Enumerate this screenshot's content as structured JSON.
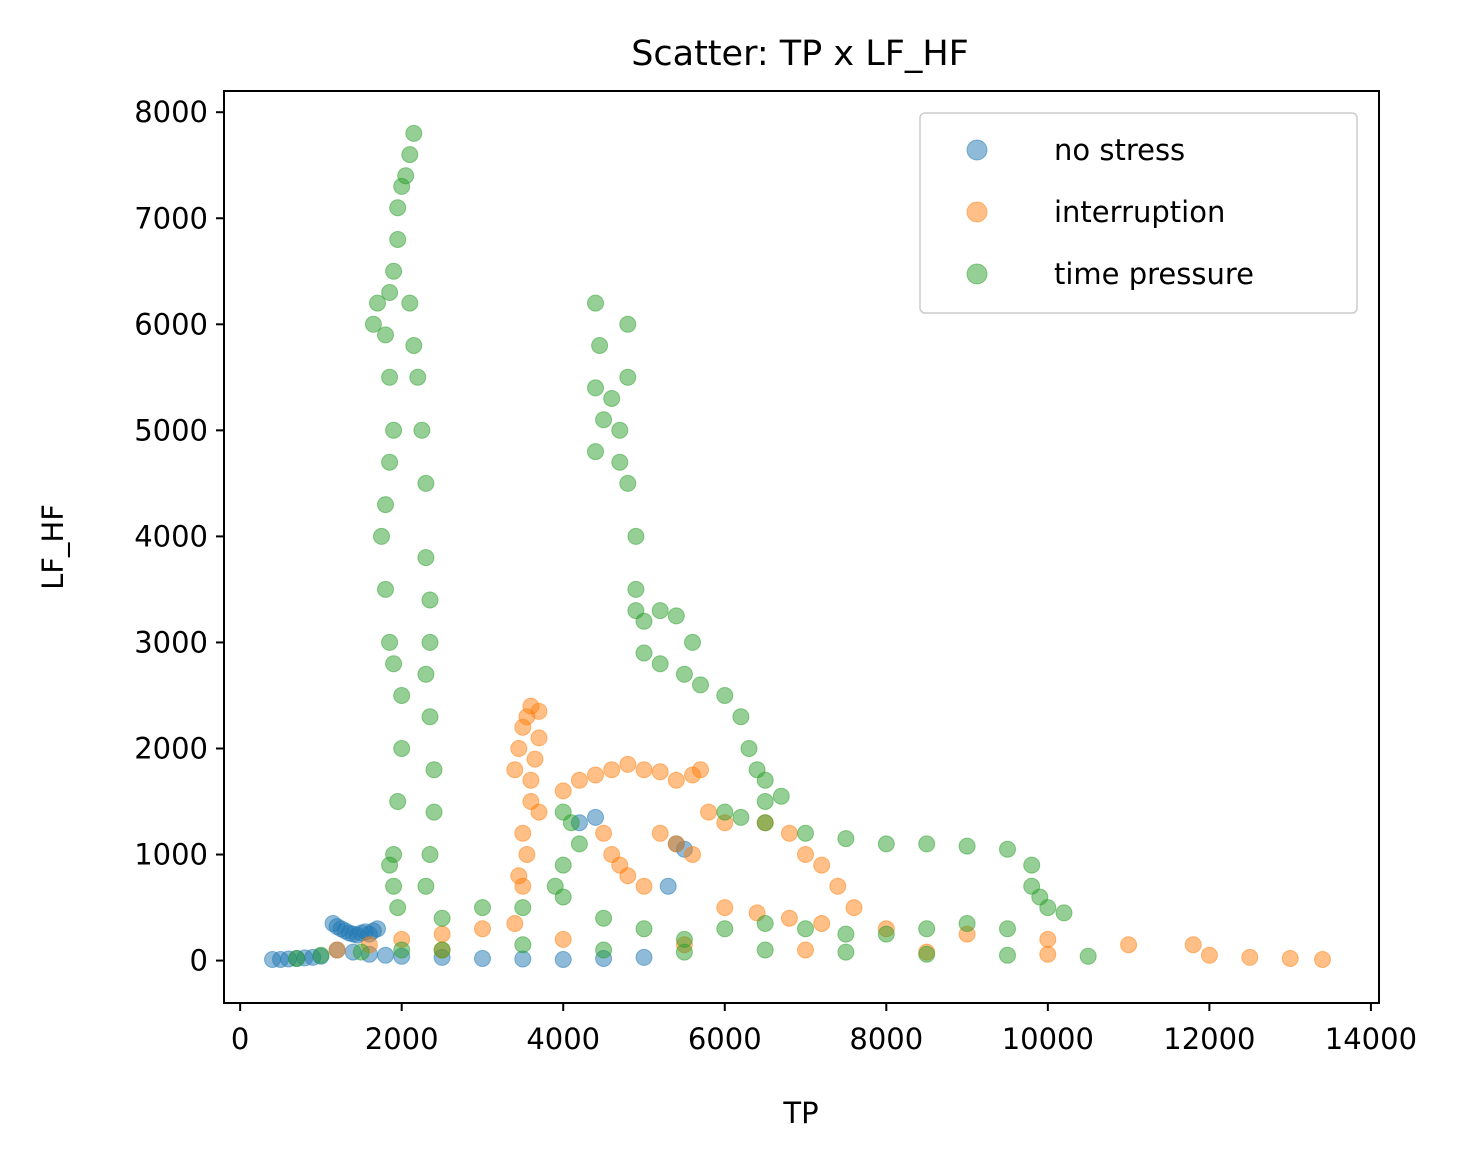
{
  "chart_data": {
    "type": "scatter",
    "title": "Scatter: TP x LF_HF",
    "xlabel": "TP",
    "ylabel": "LF_HF",
    "xlim": [
      -200,
      14100
    ],
    "ylim": [
      -400,
      8200
    ],
    "xticks": [
      0,
      2000,
      4000,
      6000,
      8000,
      10000,
      12000,
      14000
    ],
    "yticks": [
      0,
      1000,
      2000,
      3000,
      4000,
      5000,
      6000,
      7000,
      8000
    ],
    "xtick_labels": [
      "0",
      "2000",
      "4000",
      "6000",
      "8000",
      "10000",
      "12000",
      "14000"
    ],
    "ytick_labels": [
      "0",
      "1000",
      "2000",
      "3000",
      "4000",
      "5000",
      "6000",
      "7000",
      "8000"
    ],
    "grid": false,
    "legend_position": "top-right",
    "series": [
      {
        "name": "no stress",
        "color": "#1f77b4",
        "points": [
          [
            400,
            10
          ],
          [
            500,
            10
          ],
          [
            600,
            15
          ],
          [
            700,
            20
          ],
          [
            800,
            25
          ],
          [
            900,
            30
          ],
          [
            1000,
            40
          ],
          [
            1150,
            350
          ],
          [
            1200,
            320
          ],
          [
            1250,
            300
          ],
          [
            1300,
            280
          ],
          [
            1350,
            260
          ],
          [
            1400,
            250
          ],
          [
            1450,
            240
          ],
          [
            1500,
            260
          ],
          [
            1550,
            270
          ],
          [
            1600,
            250
          ],
          [
            1650,
            280
          ],
          [
            1700,
            300
          ],
          [
            1200,
            100
          ],
          [
            1400,
            80
          ],
          [
            1600,
            60
          ],
          [
            1800,
            50
          ],
          [
            2000,
            40
          ],
          [
            2500,
            30
          ],
          [
            3000,
            20
          ],
          [
            3500,
            15
          ],
          [
            4000,
            10
          ],
          [
            4500,
            20
          ],
          [
            5000,
            30
          ],
          [
            4200,
            1300
          ],
          [
            4400,
            1350
          ],
          [
            5400,
            1100
          ],
          [
            5500,
            1050
          ],
          [
            5300,
            700
          ]
        ]
      },
      {
        "name": "interruption",
        "color": "#ff7f0e",
        "points": [
          [
            1200,
            100
          ],
          [
            1600,
            150
          ],
          [
            2000,
            200
          ],
          [
            2500,
            250
          ],
          [
            3000,
            300
          ],
          [
            3400,
            350
          ],
          [
            3400,
            1800
          ],
          [
            3450,
            2000
          ],
          [
            3500,
            2200
          ],
          [
            3550,
            2300
          ],
          [
            3600,
            2400
          ],
          [
            3700,
            2350
          ],
          [
            3700,
            2100
          ],
          [
            3650,
            1900
          ],
          [
            3600,
            1700
          ],
          [
            3600,
            1500
          ],
          [
            3700,
            1400
          ],
          [
            3500,
            1200
          ],
          [
            3550,
            1000
          ],
          [
            3450,
            800
          ],
          [
            3500,
            700
          ],
          [
            4000,
            1600
          ],
          [
            4200,
            1700
          ],
          [
            4400,
            1750
          ],
          [
            4600,
            1800
          ],
          [
            4800,
            1850
          ],
          [
            5000,
            1800
          ],
          [
            5200,
            1780
          ],
          [
            5400,
            1700
          ],
          [
            5600,
            1750
          ],
          [
            5700,
            1800
          ],
          [
            4500,
            1200
          ],
          [
            4600,
            1000
          ],
          [
            4700,
            900
          ],
          [
            4800,
            800
          ],
          [
            5000,
            700
          ],
          [
            5200,
            1200
          ],
          [
            5400,
            1100
          ],
          [
            5600,
            1000
          ],
          [
            5800,
            1400
          ],
          [
            6000,
            1300
          ],
          [
            6500,
            1300
          ],
          [
            6800,
            1200
          ],
          [
            7000,
            1000
          ],
          [
            7200,
            900
          ],
          [
            7400,
            700
          ],
          [
            7600,
            500
          ],
          [
            6000,
            500
          ],
          [
            6400,
            450
          ],
          [
            6800,
            400
          ],
          [
            7200,
            350
          ],
          [
            8000,
            300
          ],
          [
            9000,
            250
          ],
          [
            10000,
            200
          ],
          [
            11000,
            150
          ],
          [
            11800,
            150
          ],
          [
            12000,
            50
          ],
          [
            12500,
            30
          ],
          [
            13000,
            20
          ],
          [
            13400,
            10
          ],
          [
            2500,
            100
          ],
          [
            4000,
            200
          ],
          [
            5500,
            150
          ],
          [
            7000,
            100
          ],
          [
            8500,
            80
          ],
          [
            10000,
            60
          ]
        ]
      },
      {
        "name": "time pressure",
        "color": "#2ca02c",
        "points": [
          [
            700,
            20
          ],
          [
            1000,
            50
          ],
          [
            1500,
            80
          ],
          [
            2000,
            100
          ],
          [
            1950,
            500
          ],
          [
            1900,
            700
          ],
          [
            1850,
            900
          ],
          [
            1900,
            1000
          ],
          [
            1950,
            1500
          ],
          [
            2000,
            2000
          ],
          [
            2000,
            2500
          ],
          [
            1900,
            2800
          ],
          [
            1850,
            3000
          ],
          [
            1800,
            3500
          ],
          [
            1750,
            4000
          ],
          [
            1800,
            4300
          ],
          [
            1850,
            4700
          ],
          [
            1900,
            5000
          ],
          [
            1850,
            5500
          ],
          [
            1800,
            5900
          ],
          [
            1650,
            6000
          ],
          [
            1700,
            6200
          ],
          [
            1850,
            6300
          ],
          [
            1900,
            6500
          ],
          [
            1950,
            6800
          ],
          [
            1950,
            7100
          ],
          [
            2000,
            7300
          ],
          [
            2050,
            7400
          ],
          [
            2100,
            7600
          ],
          [
            2150,
            7800
          ],
          [
            2100,
            6200
          ],
          [
            2150,
            5800
          ],
          [
            2200,
            5500
          ],
          [
            2250,
            5000
          ],
          [
            2300,
            4500
          ],
          [
            2300,
            3800
          ],
          [
            2350,
            3400
          ],
          [
            2350,
            3000
          ],
          [
            2300,
            2700
          ],
          [
            2350,
            2300
          ],
          [
            2400,
            1800
          ],
          [
            2400,
            1400
          ],
          [
            2350,
            1000
          ],
          [
            2300,
            700
          ],
          [
            4400,
            6200
          ],
          [
            4450,
            5800
          ],
          [
            4400,
            5400
          ],
          [
            4500,
            5100
          ],
          [
            4400,
            4800
          ],
          [
            4600,
            5300
          ],
          [
            4700,
            5000
          ],
          [
            4700,
            4700
          ],
          [
            4800,
            5500
          ],
          [
            4800,
            6000
          ],
          [
            4800,
            4500
          ],
          [
            4900,
            4000
          ],
          [
            4900,
            3500
          ],
          [
            4900,
            3300
          ],
          [
            5000,
            3200
          ],
          [
            5200,
            3300
          ],
          [
            5400,
            3250
          ],
          [
            5600,
            3000
          ],
          [
            5000,
            2900
          ],
          [
            5200,
            2800
          ],
          [
            5500,
            2700
          ],
          [
            5700,
            2600
          ],
          [
            6000,
            2500
          ],
          [
            6200,
            2300
          ],
          [
            6300,
            2000
          ],
          [
            6400,
            1800
          ],
          [
            6500,
            1700
          ],
          [
            6700,
            1550
          ],
          [
            6500,
            1500
          ],
          [
            6000,
            1400
          ],
          [
            6200,
            1350
          ],
          [
            6500,
            1300
          ],
          [
            7000,
            1200
          ],
          [
            7500,
            1150
          ],
          [
            8000,
            1100
          ],
          [
            8500,
            1100
          ],
          [
            9000,
            1080
          ],
          [
            9500,
            1050
          ],
          [
            9800,
            900
          ],
          [
            9800,
            700
          ],
          [
            9900,
            600
          ],
          [
            10000,
            500
          ],
          [
            10200,
            450
          ],
          [
            4000,
            1400
          ],
          [
            4100,
            1300
          ],
          [
            4200,
            1100
          ],
          [
            4000,
            900
          ],
          [
            3900,
            700
          ],
          [
            2500,
            400
          ],
          [
            3000,
            500
          ],
          [
            3500,
            500
          ],
          [
            4000,
            600
          ],
          [
            4500,
            400
          ],
          [
            5000,
            300
          ],
          [
            5500,
            200
          ],
          [
            6000,
            300
          ],
          [
            6500,
            350
          ],
          [
            7000,
            300
          ],
          [
            7500,
            250
          ],
          [
            8000,
            250
          ],
          [
            8500,
            300
          ],
          [
            9000,
            350
          ],
          [
            9500,
            300
          ],
          [
            2500,
            100
          ],
          [
            3500,
            150
          ],
          [
            4500,
            100
          ],
          [
            5500,
            80
          ],
          [
            6500,
            100
          ],
          [
            7500,
            80
          ],
          [
            8500,
            60
          ],
          [
            9500,
            50
          ],
          [
            10500,
            40
          ]
        ]
      }
    ]
  }
}
